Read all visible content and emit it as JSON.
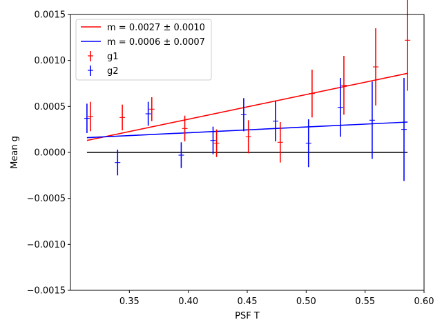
{
  "chart_data": {
    "type": "scatter",
    "xlabel": "PSF T",
    "ylabel": "Mean g",
    "xlim": [
      0.3,
      0.6
    ],
    "ylim": [
      -0.0015,
      0.0015
    ],
    "x_ticks": [
      "0.35",
      "0.40",
      "0.45",
      "0.50",
      "0.55",
      "0.60"
    ],
    "x_tick_values": [
      0.35,
      0.4,
      0.45,
      0.5,
      0.55,
      0.6
    ],
    "y_ticks": [
      "−0.0015",
      "−0.0010",
      "−0.0005",
      "0.0000",
      "0.0005",
      "0.0010",
      "0.0015"
    ],
    "y_tick_values": [
      -0.0015,
      -0.001,
      -0.0005,
      0.0,
      0.0005,
      0.001,
      0.0015
    ],
    "grid": false,
    "legend_position": "top-left",
    "series": [
      {
        "name": "g1",
        "color": "#ff0000",
        "x": [
          0.317,
          0.344,
          0.369,
          0.397,
          0.424,
          0.451,
          0.478,
          0.505,
          0.532,
          0.559,
          0.586
        ],
        "y": [
          0.00039,
          0.00038,
          0.00047,
          0.00026,
          0.0001,
          0.00017,
          0.00011,
          0.00064,
          0.00073,
          0.00093,
          0.00122
        ],
        "yerr": [
          0.00016,
          0.00014,
          0.00013,
          0.00014,
          0.00015,
          0.00018,
          0.00022,
          0.00026,
          0.00032,
          0.00042,
          0.00055
        ]
      },
      {
        "name": "g2",
        "color": "#0000ff",
        "x": [
          0.314,
          0.34,
          0.366,
          0.394,
          0.421,
          0.447,
          0.474,
          0.502,
          0.529,
          0.556,
          0.583
        ],
        "y": [
          0.00037,
          -0.00011,
          0.00042,
          -3e-05,
          0.00013,
          0.00041,
          0.00034,
          0.0001,
          0.00049,
          0.00035,
          0.00025
        ]
      }
    ],
    "g2_yerr": [
      0.00016,
      0.00014,
      0.00013,
      0.00014,
      0.00015,
      0.00018,
      0.00022,
      0.00026,
      0.00032,
      0.00042,
      0.00056
    ],
    "fit_lines": [
      {
        "label": "m = 0.0027 ± 0.0010",
        "color": "#ff0000",
        "x": [
          0.314,
          0.586
        ],
        "y": [
          0.00013,
          0.00086
        ]
      },
      {
        "label": "m = 0.0006 ± 0.0007",
        "color": "#0000ff",
        "x": [
          0.314,
          0.586
        ],
        "y": [
          0.00016,
          0.00033
        ]
      }
    ],
    "zero_line": {
      "color": "#000000",
      "x": [
        0.314,
        0.586
      ],
      "y": [
        0.0,
        0.0
      ]
    }
  }
}
